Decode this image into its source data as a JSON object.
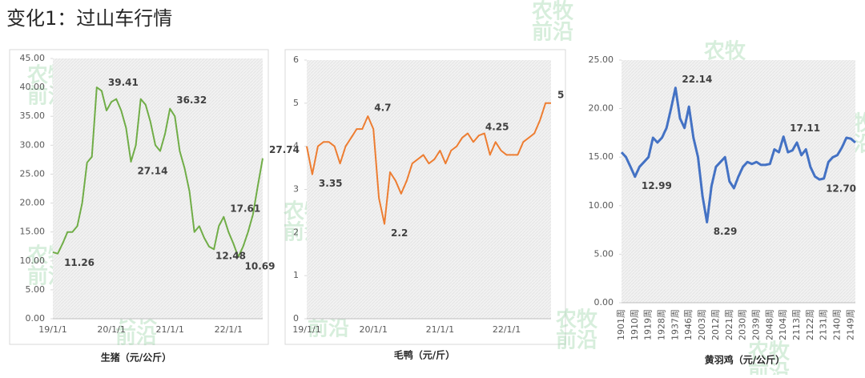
{
  "title": "变化1：过山车行情",
  "watermark": [
    "农牧",
    "前沿"
  ],
  "chart_data": [
    {
      "type": "line",
      "x_label": "生猪（元/公斤）",
      "color": "#70ad47",
      "grid": false,
      "categories": [
        "19/1/1",
        null,
        null,
        null,
        null,
        null,
        null,
        null,
        null,
        null,
        null,
        null,
        "20/1/1",
        null,
        null,
        null,
        null,
        null,
        null,
        null,
        null,
        null,
        null,
        null,
        "21/1/1",
        null,
        null,
        null,
        null,
        null,
        null,
        null,
        null,
        null,
        null,
        null,
        "22/1/1",
        null,
        null,
        null,
        null,
        null,
        null,
        null
      ],
      "values": [
        11.5,
        11.26,
        13,
        15,
        15,
        16,
        20,
        27,
        28,
        40,
        39.41,
        36,
        37.5,
        38,
        36,
        33,
        27.14,
        30,
        38,
        37,
        34,
        30,
        29,
        32,
        36.32,
        35,
        29,
        26,
        22,
        15,
        16,
        14,
        12.48,
        12,
        16,
        17.61,
        15,
        13,
        10.69,
        12.5,
        15,
        18,
        23,
        27.74
      ],
      "value_labels": [
        null,
        "11.26",
        null,
        null,
        null,
        null,
        null,
        null,
        null,
        null,
        "39.41",
        null,
        null,
        null,
        null,
        null,
        "27.14",
        null,
        null,
        null,
        null,
        null,
        null,
        null,
        "36.32",
        null,
        null,
        null,
        null,
        null,
        null,
        null,
        "12.48",
        null,
        null,
        "17.61",
        null,
        null,
        "10.69",
        null,
        null,
        null,
        null,
        "27.74"
      ],
      "ylim": [
        0,
        45
      ],
      "yticks": [
        {
          "value": 0,
          "label": "0.00"
        },
        {
          "value": 5,
          "label": "5.00"
        },
        {
          "value": 10,
          "label": "10.00"
        },
        {
          "value": 15,
          "label": "15.00"
        },
        {
          "value": 20,
          "label": "20.00"
        },
        {
          "value": 25,
          "label": "25.00"
        },
        {
          "value": 30,
          "label": "30.00"
        },
        {
          "value": 35,
          "label": "35.00"
        },
        {
          "value": 40,
          "label": "40.00"
        },
        {
          "value": 45,
          "label": "45.00"
        }
      ]
    },
    {
      "type": "line",
      "x_label": "毛鸭（元/斤）",
      "color": "#ed7d31",
      "grid": false,
      "categories": [
        "19/1/1",
        null,
        null,
        null,
        null,
        null,
        null,
        null,
        null,
        null,
        null,
        null,
        "20/1/1",
        null,
        null,
        null,
        null,
        null,
        null,
        null,
        null,
        null,
        null,
        null,
        "21/1/1",
        null,
        null,
        null,
        null,
        null,
        null,
        null,
        null,
        null,
        null,
        null,
        "22/1/1",
        null,
        null,
        null,
        null,
        null,
        null,
        null,
        null
      ],
      "values": [
        4,
        3.35,
        4,
        4.1,
        4.1,
        4,
        3.6,
        4,
        4.2,
        4.4,
        4.4,
        4.7,
        4.4,
        2.8,
        2.2,
        3.4,
        3.2,
        2.9,
        3.2,
        3.6,
        3.7,
        3.8,
        3.6,
        3.7,
        3.9,
        3.6,
        3.9,
        4,
        4.2,
        4.3,
        4.1,
        4.25,
        4.3,
        3.8,
        4.1,
        3.9,
        3.8,
        3.8,
        3.8,
        4.1,
        4.2,
        4.3,
        4.6,
        5,
        5
      ],
      "value_labels": [
        null,
        "3.35",
        null,
        null,
        null,
        null,
        null,
        null,
        null,
        null,
        null,
        "4.7",
        null,
        null,
        "2.2",
        null,
        null,
        null,
        null,
        null,
        null,
        null,
        null,
        null,
        null,
        null,
        null,
        null,
        null,
        null,
        null,
        "4.25",
        null,
        null,
        null,
        null,
        null,
        null,
        null,
        null,
        null,
        null,
        null,
        null,
        "5"
      ],
      "ylim": [
        0,
        6
      ],
      "yticks": [
        0,
        1,
        2,
        3,
        4,
        5,
        6
      ]
    },
    {
      "type": "line",
      "x_label": "黄羽鸡（元/公斤）",
      "color": "#4472c4",
      "grid": false,
      "categories": [
        "1901周",
        null,
        null,
        "1910周",
        null,
        null,
        "1919周",
        null,
        null,
        "1928周",
        null,
        null,
        "1937周",
        null,
        null,
        "1946周",
        null,
        null,
        "2003周",
        null,
        null,
        "2012周",
        null,
        null,
        "2021周",
        null,
        null,
        "2030周",
        null,
        null,
        "2039周",
        null,
        null,
        "2048周",
        null,
        null,
        "2104周",
        null,
        null,
        "2113周",
        null,
        null,
        "2122周",
        null,
        null,
        "2131周",
        null,
        null,
        "2140周",
        null,
        null,
        "2149周",
        null
      ],
      "values": [
        15.5,
        15,
        14,
        12.99,
        14,
        14.5,
        15,
        17,
        16.5,
        17,
        18,
        20,
        22.14,
        19,
        18,
        20.2,
        17,
        15,
        11,
        8.29,
        12,
        14,
        14.5,
        15,
        12.5,
        11.8,
        13,
        14,
        14.5,
        14.3,
        14.5,
        14.2,
        14.2,
        14.3,
        15.8,
        15.5,
        17.11,
        15.5,
        15.7,
        16.5,
        15.2,
        15.8,
        14,
        13,
        12.7,
        12.8,
        14.5,
        15,
        15.2,
        16,
        17,
        16.9,
        16.5
      ],
      "value_labels": [
        null,
        null,
        null,
        "12.99",
        null,
        null,
        null,
        null,
        null,
        null,
        null,
        null,
        "22.14",
        null,
        null,
        null,
        null,
        null,
        null,
        "8.29",
        null,
        null,
        null,
        null,
        null,
        null,
        null,
        null,
        null,
        null,
        null,
        null,
        null,
        null,
        null,
        null,
        "17.11",
        null,
        null,
        null,
        null,
        null,
        null,
        null,
        "12.70",
        null,
        null,
        null,
        null,
        null,
        null,
        null,
        null
      ],
      "ylim": [
        0,
        25
      ],
      "yticks": [
        {
          "value": 0,
          "label": "0.00"
        },
        {
          "value": 5,
          "label": "5.00"
        },
        {
          "value": 10,
          "label": "10.00"
        },
        {
          "value": 15,
          "label": "15.00"
        },
        {
          "value": 20,
          "label": "20.00"
        },
        {
          "value": 25,
          "label": "25.00"
        }
      ]
    }
  ]
}
